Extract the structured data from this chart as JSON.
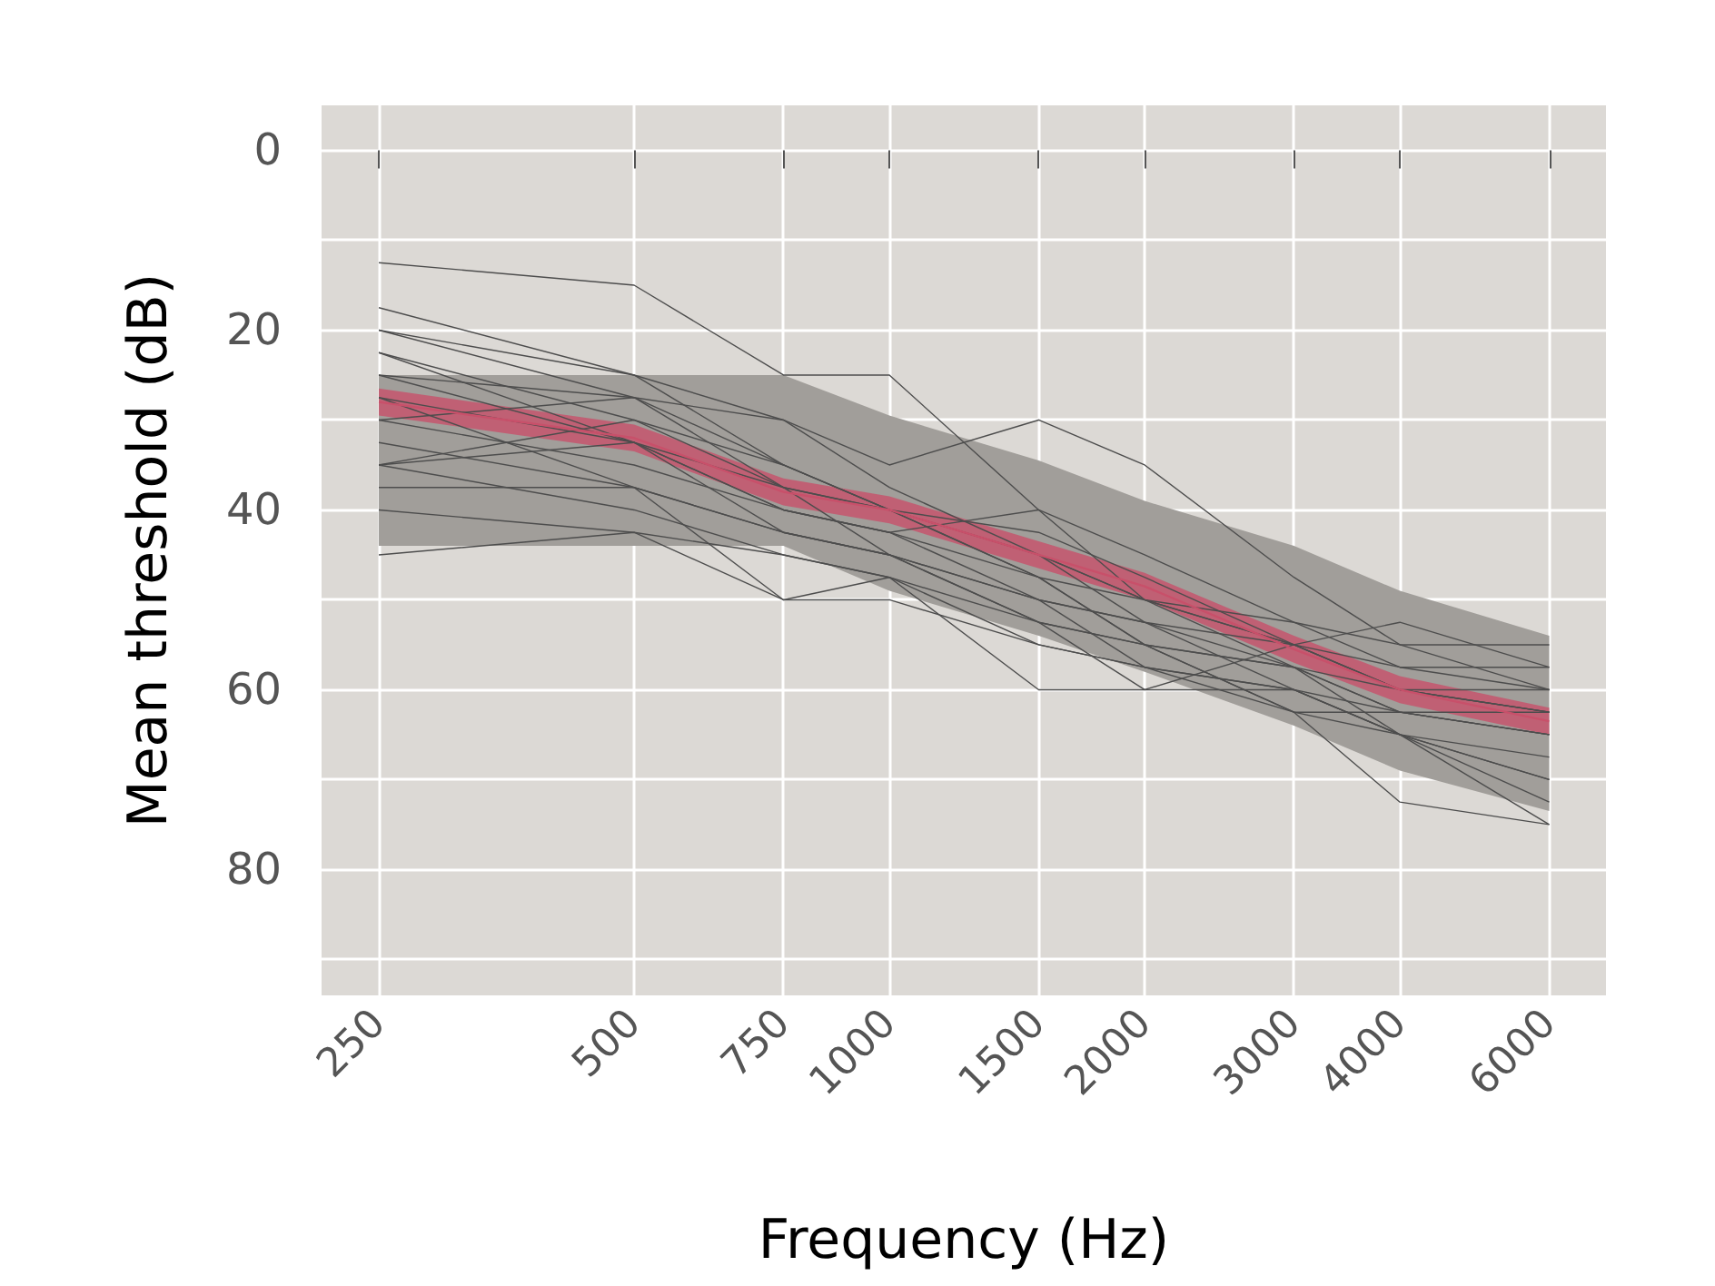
{
  "chart_data": {
    "type": "line",
    "xlabel": "Frequency (Hz)",
    "ylabel": "Mean threshold (dB)",
    "log": "x",
    "grid": true,
    "x": [
      250,
      500,
      750,
      1000,
      1500,
      2000,
      3000,
      4000,
      6000
    ],
    "xlim": [
      214,
      7000
    ],
    "xticks": [
      250,
      500,
      750,
      1000,
      1500,
      2000,
      3000,
      4000,
      6000
    ],
    "ylim": [
      94,
      -5
    ],
    "yticks": [
      0,
      {
        "value": 10,
        "label": null
      },
      20,
      {
        "value": 30,
        "label": null
      },
      40,
      {
        "value": 50,
        "label": null
      },
      60,
      {
        "value": 70,
        "label": null
      },
      80,
      {
        "value": 90,
        "label": null
      }
    ],
    "series": [
      {
        "color": "#a19e9a",
        "values": [
          null,
          null,
          null,
          null,
          null,
          null,
          null,
          null,
          null
        ],
        "lower": [
          25,
          25,
          25,
          29.5,
          34.5,
          39,
          44,
          49,
          54
        ],
        "upper": [
          44,
          44,
          44,
          49,
          54,
          58,
          64,
          69,
          73.5
        ]
      },
      {
        "color": "#4d4d4d",
        "values": [
          12.5,
          15,
          25,
          25,
          40,
          50,
          57.5,
          62.5,
          65
        ]
      },
      {
        "color": "#4d4d4d",
        "values": [
          17.5,
          25,
          35,
          40,
          45,
          52.5,
          60,
          65,
          72.5
        ]
      },
      {
        "color": "#4d4d4d",
        "values": [
          20,
          27.5,
          30,
          35,
          30,
          35,
          47.5,
          55,
          60
        ]
      },
      {
        "color": "#4d4d4d",
        "values": [
          20,
          25,
          30,
          37.5,
          45,
          50,
          55,
          60,
          62.5
        ]
      },
      {
        "color": "#4d4d4d",
        "values": [
          22.5,
          30,
          37.5,
          40,
          47.5,
          55,
          62.5,
          72.5,
          75
        ]
      },
      {
        "color": "#4d4d4d",
        "values": [
          22.5,
          32.5,
          42.5,
          45,
          50,
          52.5,
          55,
          57.5,
          57.5
        ]
      },
      {
        "color": "#4d4d4d",
        "values": [
          25,
          27.5,
          35,
          40,
          42.5,
          47.5,
          55,
          60,
          60
        ]
      },
      {
        "color": "#4d4d4d",
        "values": [
          25,
          32.5,
          40,
          42.5,
          50,
          57.5,
          60,
          65,
          67.5
        ]
      },
      {
        "color": "#4d4d4d",
        "values": [
          27.5,
          32.5,
          37.5,
          40,
          45,
          50,
          55,
          60,
          62.5
        ]
      },
      {
        "color": "#4d4d4d",
        "values": [
          30,
          27.5,
          37.5,
          45,
          52.5,
          55,
          57.5,
          65,
          70
        ]
      },
      {
        "color": "#4d4d4d",
        "values": [
          30,
          35,
          40,
          42.5,
          47.5,
          55,
          62.5,
          62.5,
          62.5
        ]
      },
      {
        "color": "#4d4d4d",
        "values": [
          32.5,
          37.5,
          42.5,
          45,
          52.5,
          60,
          60,
          62.5,
          65
        ]
      },
      {
        "color": "#4d4d4d",
        "values": [
          35,
          30,
          35,
          40,
          47.5,
          50,
          52.5,
          57.5,
          60
        ]
      },
      {
        "color": "#4d4d4d",
        "values": [
          35,
          40,
          45,
          47.5,
          60,
          60,
          55,
          52.5,
          57.5
        ]
      },
      {
        "color": "#4d4d4d",
        "values": [
          37.5,
          37.5,
          50,
          50,
          55,
          57.5,
          60,
          65,
          70
        ]
      },
      {
        "color": "#4d4d4d",
        "values": [
          40,
          42.5,
          50,
          47.5,
          55,
          57.5,
          62.5,
          65,
          75
        ]
      },
      {
        "color": "#4d4d4d",
        "values": [
          45,
          42.5,
          45,
          47.5,
          52.5,
          55,
          57.5,
          60,
          62.5
        ]
      },
      {
        "color": "#4d4d4d",
        "values": [
          35,
          32.5,
          40,
          42.5,
          40,
          45,
          52.5,
          55,
          55
        ]
      },
      {
        "color": "#4d4d4d",
        "values": [
          27.5,
          37.5,
          42.5,
          45,
          50,
          52.5,
          57.5,
          62.5,
          65
        ]
      },
      {
        "color": "#c8506a",
        "values": [
          28,
          32,
          38,
          40,
          45,
          48.5,
          55.5,
          60,
          63.5
        ],
        "lower": [
          26.5,
          30.5,
          36.5,
          38.5,
          43.5,
          47,
          54,
          58.5,
          62
        ],
        "upper": [
          29.5,
          33.5,
          39.5,
          41.5,
          46.5,
          50,
          57,
          61.5,
          65
        ]
      }
    ]
  }
}
